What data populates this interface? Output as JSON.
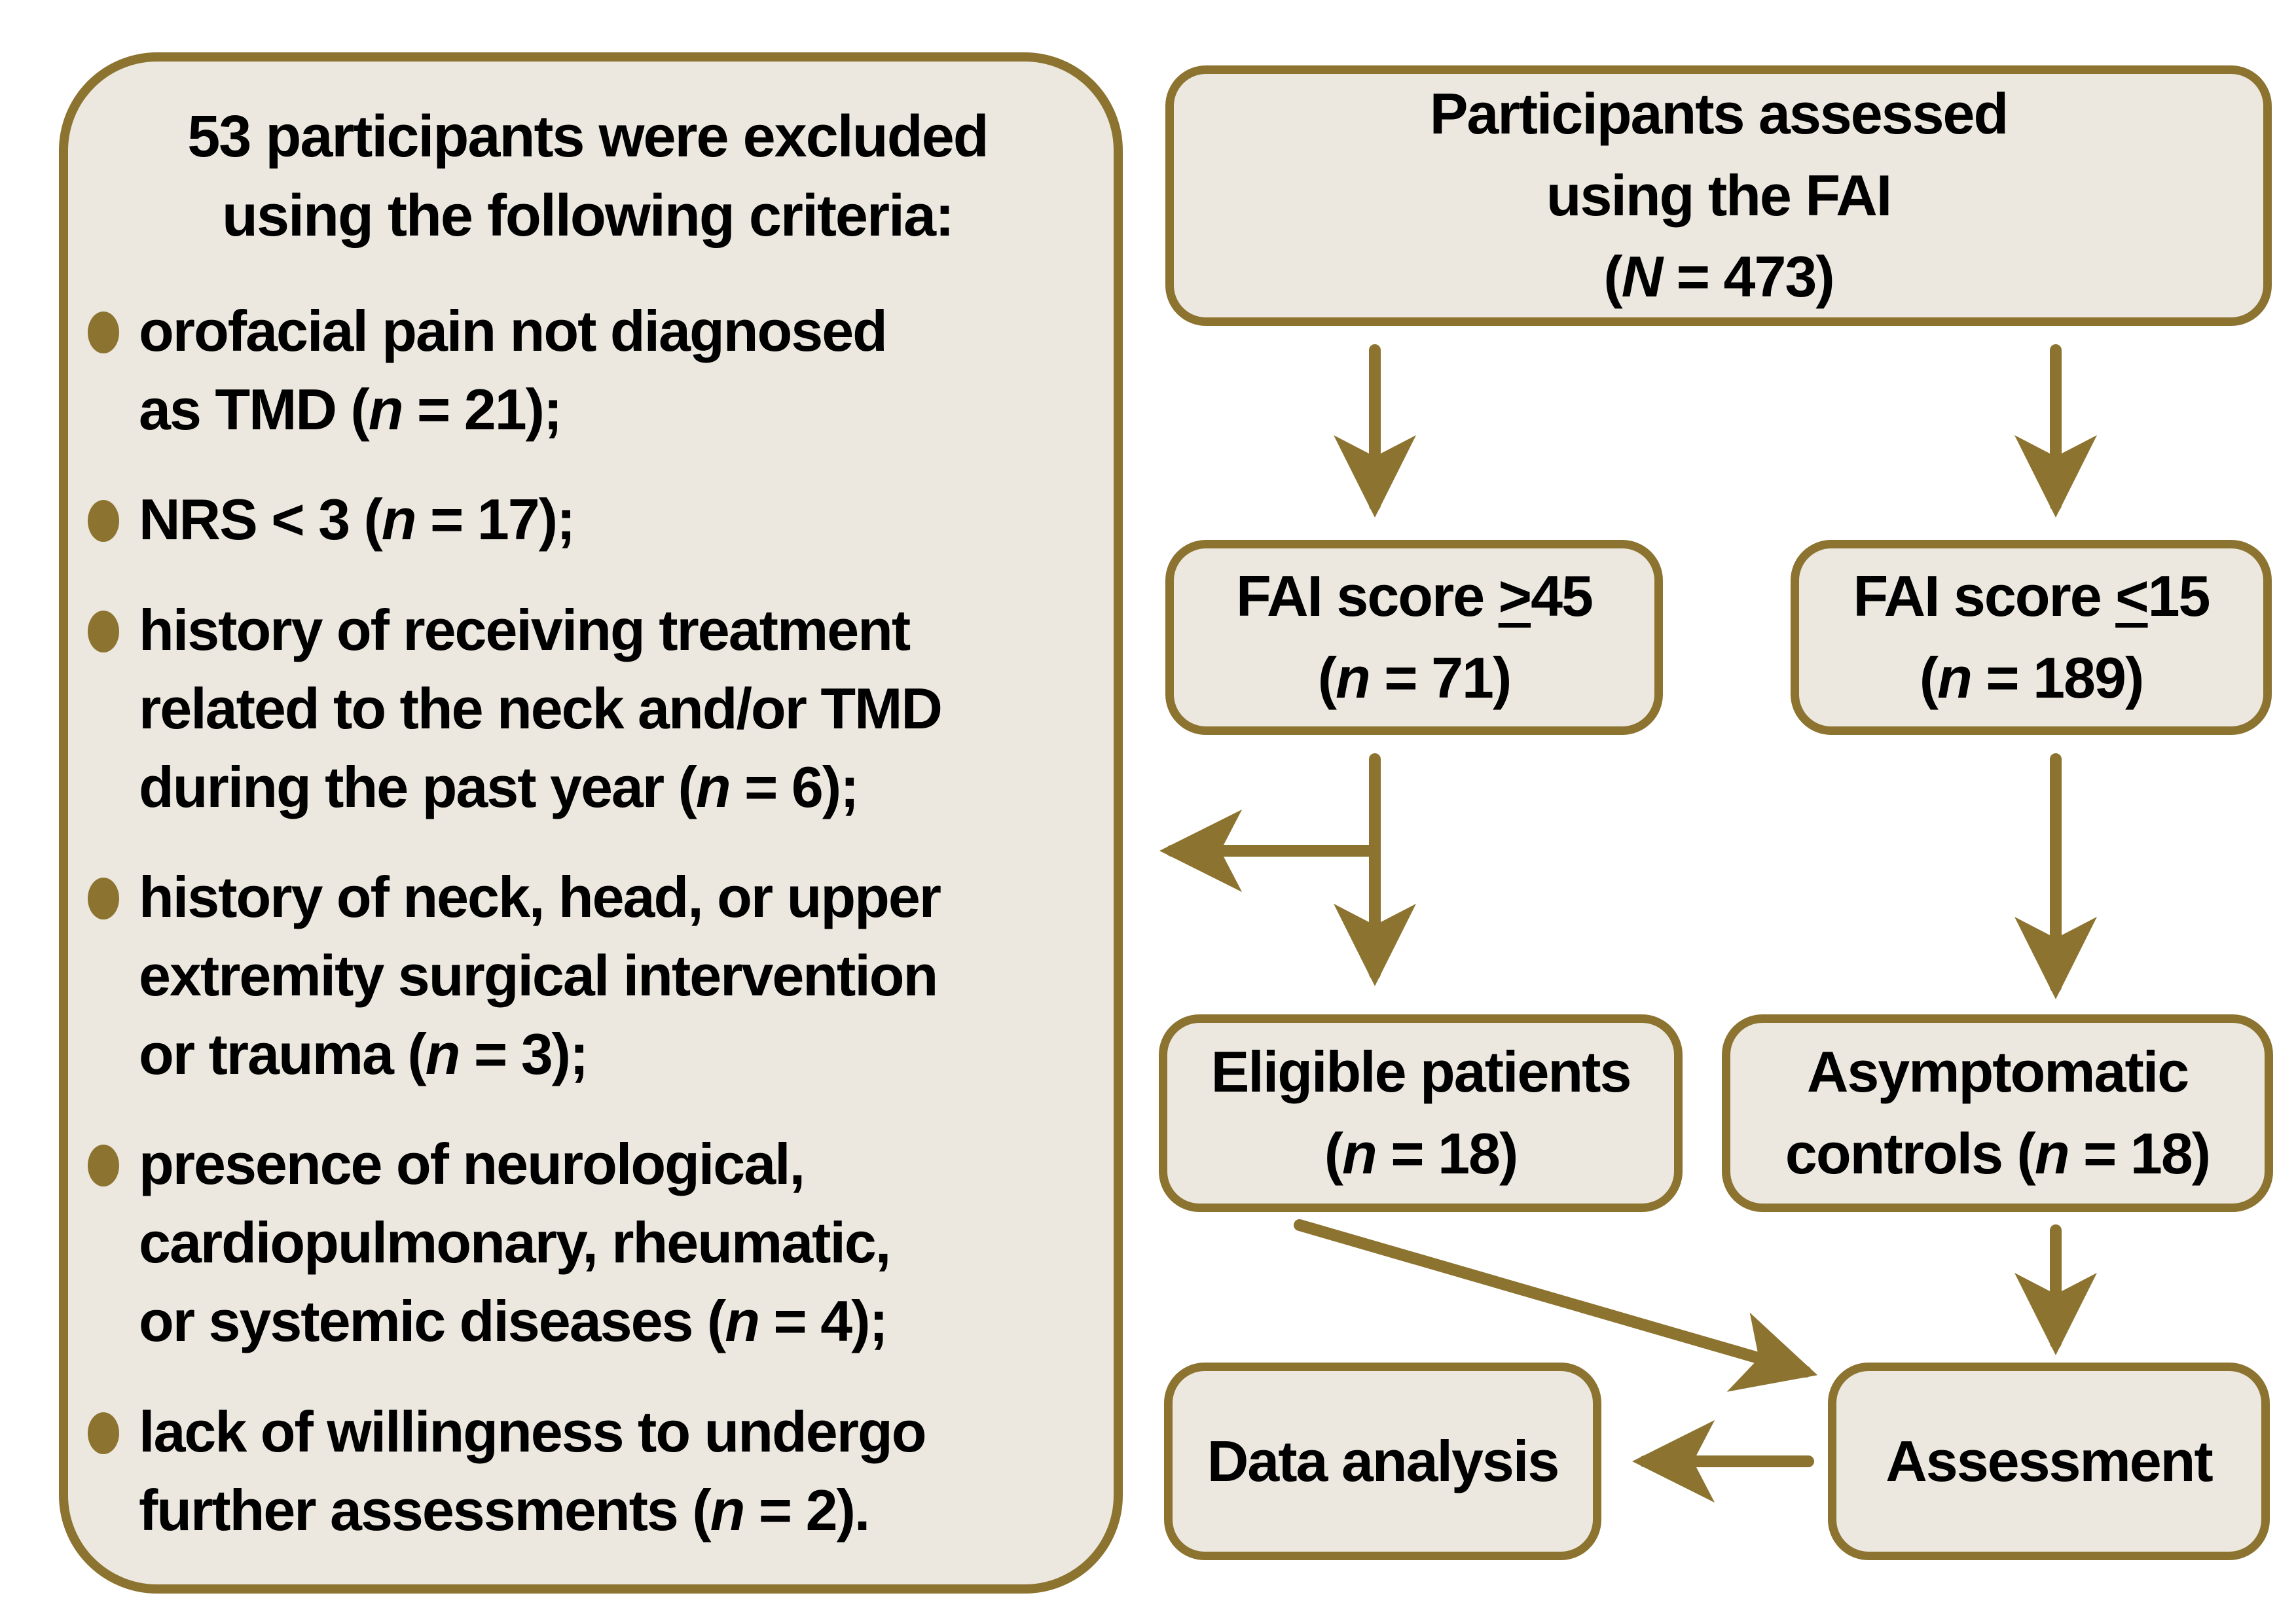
{
  "colors": {
    "gold": "#8c7330",
    "box_fill": "#ece8df",
    "text": "#000000",
    "background": "#ffffff"
  },
  "exclusion_panel": {
    "title_lines": "53 participants were excluded\nusing the following criteria:",
    "bullets": [
      {
        "lines": "orofacial pain not diagnosed\nas TMD (n = 21);"
      },
      {
        "lines": "NRS < 3 (n = 17);"
      },
      {
        "lines": "history of receiving treatment\nrelated to the neck and/or TMD\nduring the past year (n = 6);"
      },
      {
        "lines": "history of neck, head, or upper\nextremity surgical intervention\nor trauma (n = 3);"
      },
      {
        "lines": "presence of neurological,\ncardiopulmonary, rheumatic,\nor systemic diseases (n = 4);"
      },
      {
        "lines": "lack of willingness to undergo\nfurther assessments (n = 2)."
      }
    ]
  },
  "flowchart": {
    "nodes": {
      "assessed": {
        "lines": "Participants assessed\nusing the FAI\n(N = 473)"
      },
      "fai_high": {
        "lines": "FAI score ≥45\n(n = 71)"
      },
      "fai_low": {
        "lines": "FAI score ≤15\n(n = 189)"
      },
      "eligible": {
        "lines": "Eligible patients\n(n = 18)"
      },
      "controls": {
        "lines": "Asymptomatic\ncontrols (n = 18)"
      },
      "data_analysis": {
        "lines": "Data analysis"
      },
      "assessment": {
        "lines": "Assessment"
      }
    },
    "edges": [
      {
        "from": "assessed",
        "to": "fai_high"
      },
      {
        "from": "assessed",
        "to": "fai_low"
      },
      {
        "from": "fai_high",
        "to": "exclusion_panel"
      },
      {
        "from": "fai_high",
        "to": "eligible"
      },
      {
        "from": "fai_low",
        "to": "controls"
      },
      {
        "from": "eligible",
        "to": "assessment"
      },
      {
        "from": "controls",
        "to": "assessment"
      },
      {
        "from": "assessment",
        "to": "data_analysis"
      }
    ]
  }
}
